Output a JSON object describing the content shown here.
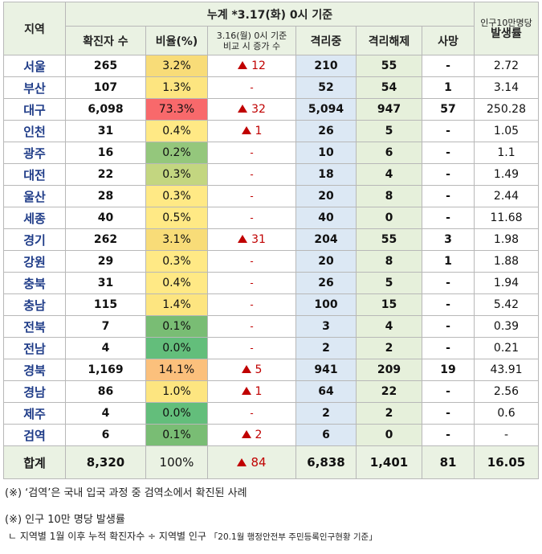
{
  "header": {
    "region": "지역",
    "cumulative": "누계 *3.17(화) 0시 기준",
    "confirmed": "확진자 수",
    "ratio": "비율(%)",
    "increase_line1": "3.16(월) 0시 기준",
    "increase_line2": "비교 시 증가 수",
    "quarantined": "격리중",
    "released": "격리해제",
    "deaths": "사망",
    "rate_line1": "인구10만명당",
    "rate_line2": "발생률"
  },
  "rows": [
    {
      "region": "서울",
      "confirmed": "265",
      "ratio": "3.2%",
      "ratio_color": "#f8dc78",
      "increase": "12",
      "increase_up": true,
      "quarantined": "210",
      "released": "55",
      "deaths": "-",
      "rate": "2.72"
    },
    {
      "region": "부산",
      "confirmed": "107",
      "ratio": "1.3%",
      "ratio_color": "#fde580",
      "increase": "-",
      "increase_up": false,
      "quarantined": "52",
      "released": "54",
      "deaths": "1",
      "rate": "3.14"
    },
    {
      "region": "대구",
      "confirmed": "6,098",
      "ratio": "73.3%",
      "ratio_color": "#f8696b",
      "increase": "32",
      "increase_up": true,
      "quarantined": "5,094",
      "released": "947",
      "deaths": "57",
      "rate": "250.28"
    },
    {
      "region": "인천",
      "confirmed": "31",
      "ratio": "0.4%",
      "ratio_color": "#ffe985",
      "increase": "1",
      "increase_up": true,
      "quarantined": "26",
      "released": "5",
      "deaths": "-",
      "rate": "1.05"
    },
    {
      "region": "광주",
      "confirmed": "16",
      "ratio": "0.2%",
      "ratio_color": "#94c77c",
      "increase": "-",
      "increase_up": false,
      "quarantined": "10",
      "released": "6",
      "deaths": "-",
      "rate": "1.1"
    },
    {
      "region": "대전",
      "confirmed": "22",
      "ratio": "0.3%",
      "ratio_color": "#c3d680",
      "increase": "-",
      "increase_up": false,
      "quarantined": "18",
      "released": "4",
      "deaths": "-",
      "rate": "1.49"
    },
    {
      "region": "울산",
      "confirmed": "28",
      "ratio": "0.3%",
      "ratio_color": "#ffe985",
      "increase": "-",
      "increase_up": false,
      "quarantined": "20",
      "released": "8",
      "deaths": "-",
      "rate": "2.44"
    },
    {
      "region": "세종",
      "confirmed": "40",
      "ratio": "0.5%",
      "ratio_color": "#ffe985",
      "increase": "-",
      "increase_up": false,
      "quarantined": "40",
      "released": "0",
      "deaths": "-",
      "rate": "11.68"
    },
    {
      "region": "경기",
      "confirmed": "262",
      "ratio": "3.1%",
      "ratio_color": "#f8dc78",
      "increase": "31",
      "increase_up": true,
      "quarantined": "204",
      "released": "55",
      "deaths": "3",
      "rate": "1.98"
    },
    {
      "region": "강원",
      "confirmed": "29",
      "ratio": "0.3%",
      "ratio_color": "#ffe985",
      "increase": "-",
      "increase_up": false,
      "quarantined": "20",
      "released": "8",
      "deaths": "1",
      "rate": "1.88"
    },
    {
      "region": "충북",
      "confirmed": "31",
      "ratio": "0.4%",
      "ratio_color": "#ffe985",
      "increase": "-",
      "increase_up": false,
      "quarantined": "26",
      "released": "5",
      "deaths": "-",
      "rate": "1.94"
    },
    {
      "region": "충남",
      "confirmed": "115",
      "ratio": "1.4%",
      "ratio_color": "#fde580",
      "increase": "-",
      "increase_up": false,
      "quarantined": "100",
      "released": "15",
      "deaths": "-",
      "rate": "5.42"
    },
    {
      "region": "전북",
      "confirmed": "7",
      "ratio": "0.1%",
      "ratio_color": "#79bd74",
      "increase": "-",
      "increase_up": false,
      "quarantined": "3",
      "released": "4",
      "deaths": "-",
      "rate": "0.39"
    },
    {
      "region": "전남",
      "confirmed": "4",
      "ratio": "0.0%",
      "ratio_color": "#63be7b",
      "increase": "-",
      "increase_up": false,
      "quarantined": "2",
      "released": "2",
      "deaths": "-",
      "rate": "0.21"
    },
    {
      "region": "경북",
      "confirmed": "1,169",
      "ratio": "14.1%",
      "ratio_color": "#fbc07c",
      "increase": "5",
      "increase_up": true,
      "quarantined": "941",
      "released": "209",
      "deaths": "19",
      "rate": "43.91"
    },
    {
      "region": "경남",
      "confirmed": "86",
      "ratio": "1.0%",
      "ratio_color": "#fde580",
      "increase": "1",
      "increase_up": true,
      "quarantined": "64",
      "released": "22",
      "deaths": "-",
      "rate": "2.56"
    },
    {
      "region": "제주",
      "confirmed": "4",
      "ratio": "0.0%",
      "ratio_color": "#63be7b",
      "increase": "-",
      "increase_up": false,
      "quarantined": "2",
      "released": "2",
      "deaths": "-",
      "rate": "0.6"
    },
    {
      "region": "검역",
      "confirmed": "6",
      "ratio": "0.1%",
      "ratio_color": "#79bd74",
      "increase": "2",
      "increase_up": true,
      "quarantined": "6",
      "released": "0",
      "deaths": "-",
      "rate": "-"
    }
  ],
  "total": {
    "region": "합계",
    "confirmed": "8,320",
    "ratio": "100%",
    "increase": "84",
    "quarantined": "6,838",
    "released": "1,401",
    "deaths": "81",
    "rate": "16.05"
  },
  "notes": {
    "note1": "(※) ‘검역’은 국내 입국 과정 중 검역소에서 확진된 사례",
    "note2": "(※) 인구 10만 명당 발생률",
    "note3_main": "ㄴ 지역별 1월 이후 누적 확진자수 ÷ 지역별 인구",
    "note3_small": "「20.1월 행정안전부 주민등록인구현황 기준」"
  }
}
